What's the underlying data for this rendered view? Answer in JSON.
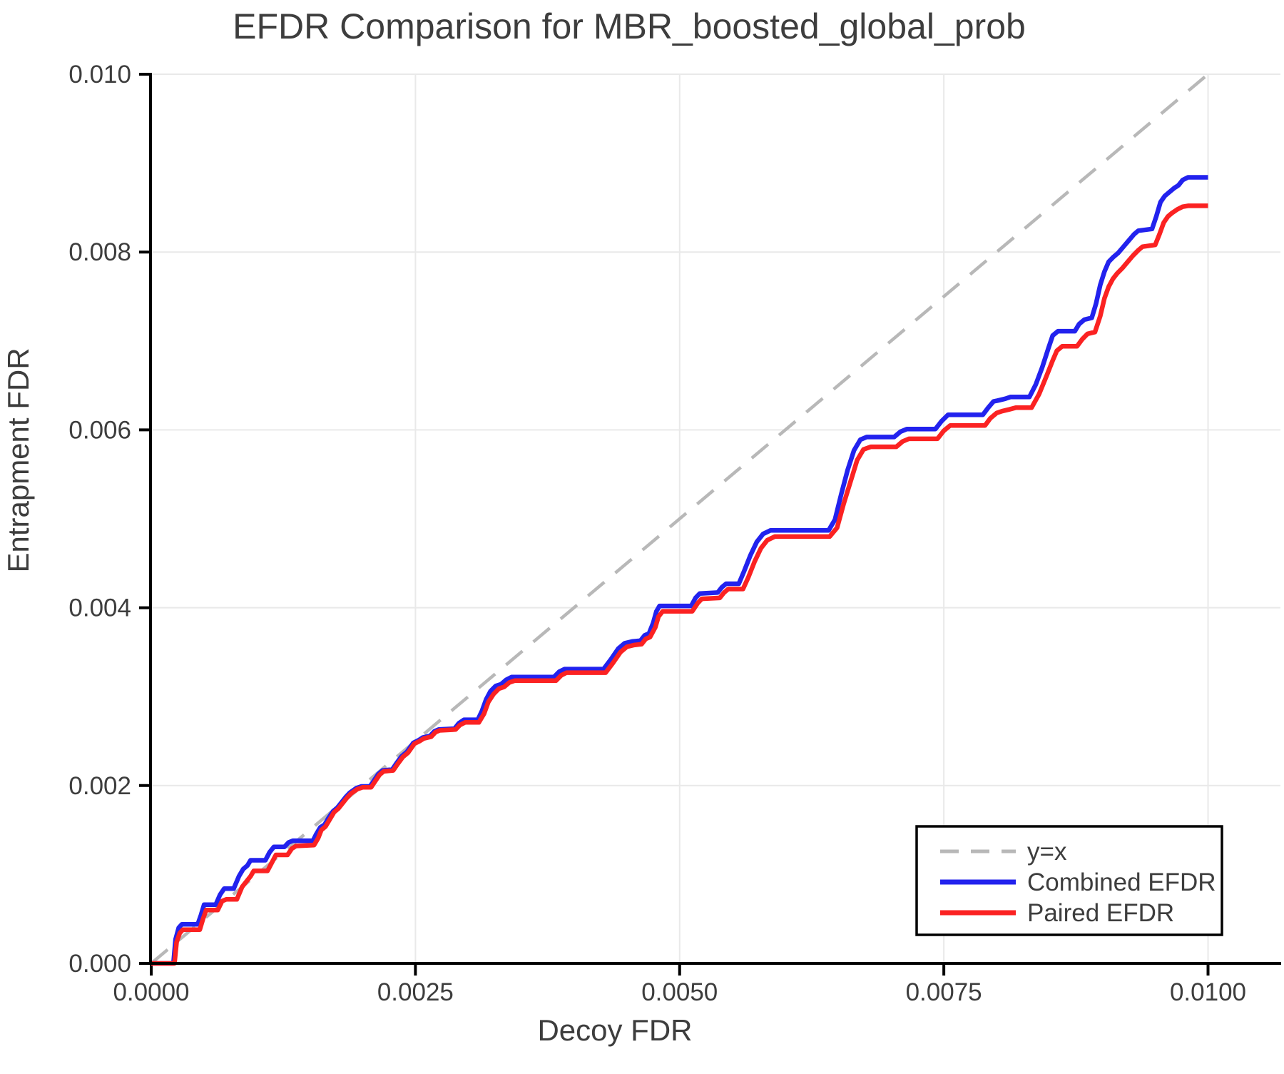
{
  "title": "EFDR Comparison for MBR_boosted_global_prob",
  "colors": {
    "text": "#3d3d3d",
    "axis": "#000000",
    "grid": "#e9e9e9",
    "background": "#ffffff",
    "identity": "#b8b8b8",
    "combined": "#2222ee",
    "paired": "#fb2222"
  },
  "chart_data": {
    "type": "line",
    "title": "EFDR Comparison for MBR_boosted_global_prob",
    "xlabel": "Decoy FDR",
    "ylabel": "Entrapment FDR",
    "xlim": [
      0,
      0.0107
    ],
    "ylim": [
      0,
      0.01
    ],
    "grid": true,
    "legend_position": "bottom-right",
    "x_ticks": [
      {
        "value": 0.0,
        "label": "0.0000"
      },
      {
        "value": 0.0025,
        "label": "0.0025"
      },
      {
        "value": 0.005,
        "label": "0.0050"
      },
      {
        "value": 0.0075,
        "label": "0.0075"
      },
      {
        "value": 0.01,
        "label": "0.0100"
      }
    ],
    "y_ticks": [
      {
        "value": 0.0,
        "label": "0.000"
      },
      {
        "value": 0.002,
        "label": "0.002"
      },
      {
        "value": 0.004,
        "label": "0.004"
      },
      {
        "value": 0.006,
        "label": "0.006"
      },
      {
        "value": 0.008,
        "label": "0.008"
      },
      {
        "value": 0.01,
        "label": "0.010"
      }
    ],
    "identity_line": {
      "label": "y=x",
      "style": "dashed",
      "from": [
        0,
        0
      ],
      "to": [
        0.01,
        0.01
      ]
    },
    "series": [
      {
        "name": "Combined EFDR",
        "color": "#2222ee",
        "points": [
          [
            0,
            0
          ],
          [
            0.00021,
            0
          ],
          [
            0.00023,
            0.00027
          ],
          [
            0.00026,
            0.0004
          ],
          [
            0.00029,
            0.00044
          ],
          [
            0.00044,
            0.00044
          ],
          [
            0.00047,
            0.00054
          ],
          [
            0.0005,
            0.00066
          ],
          [
            0.00061,
            0.00066
          ],
          [
            0.00065,
            0.00077
          ],
          [
            0.00069,
            0.00084
          ],
          [
            0.00078,
            0.00084
          ],
          [
            0.00083,
            0.00098
          ],
          [
            0.00087,
            0.00106
          ],
          [
            0.00091,
            0.0011
          ],
          [
            0.00094,
            0.00116
          ],
          [
            0.00108,
            0.00116
          ],
          [
            0.00112,
            0.00125
          ],
          [
            0.00116,
            0.00131
          ],
          [
            0.00126,
            0.00131
          ],
          [
            0.0013,
            0.00136
          ],
          [
            0.00134,
            0.00138
          ],
          [
            0.00153,
            0.00138
          ],
          [
            0.00156,
            0.00145
          ],
          [
            0.0016,
            0.00153
          ],
          [
            0.00164,
            0.00156
          ],
          [
            0.00168,
            0.00164
          ],
          [
            0.00172,
            0.00171
          ],
          [
            0.00176,
            0.00175
          ],
          [
            0.0018,
            0.00181
          ],
          [
            0.00184,
            0.00187
          ],
          [
            0.00188,
            0.00192
          ],
          [
            0.00194,
            0.00197
          ],
          [
            0.00199,
            0.00199
          ],
          [
            0.00207,
            0.00199
          ],
          [
            0.00211,
            0.00206
          ],
          [
            0.00215,
            0.00213
          ],
          [
            0.00219,
            0.00217
          ],
          [
            0.00228,
            0.00218
          ],
          [
            0.00232,
            0.00225
          ],
          [
            0.00237,
            0.00233
          ],
          [
            0.00242,
            0.00238
          ],
          [
            0.00248,
            0.00248
          ],
          [
            0.00253,
            0.00251
          ],
          [
            0.00257,
            0.00254
          ],
          [
            0.00264,
            0.00256
          ],
          [
            0.00268,
            0.00261
          ],
          [
            0.00272,
            0.00263
          ],
          [
            0.00287,
            0.00264
          ],
          [
            0.00291,
            0.0027
          ],
          [
            0.00296,
            0.00274
          ],
          [
            0.00309,
            0.00274
          ],
          [
            0.00313,
            0.00284
          ],
          [
            0.00317,
            0.00297
          ],
          [
            0.00321,
            0.00306
          ],
          [
            0.00326,
            0.00312
          ],
          [
            0.00331,
            0.00314
          ],
          [
            0.00336,
            0.00319
          ],
          [
            0.00341,
            0.00322
          ],
          [
            0.00381,
            0.00322
          ],
          [
            0.00386,
            0.00328
          ],
          [
            0.00391,
            0.00331
          ],
          [
            0.00428,
            0.00331
          ],
          [
            0.00435,
            0.00342
          ],
          [
            0.00442,
            0.00354
          ],
          [
            0.00448,
            0.0036
          ],
          [
            0.00455,
            0.00362
          ],
          [
            0.00463,
            0.00363
          ],
          [
            0.00467,
            0.00369
          ],
          [
            0.00471,
            0.00371
          ],
          [
            0.00475,
            0.00383
          ],
          [
            0.00478,
            0.00396
          ],
          [
            0.00481,
            0.00402
          ],
          [
            0.00511,
            0.00402
          ],
          [
            0.00515,
            0.00411
          ],
          [
            0.00519,
            0.00416
          ],
          [
            0.00536,
            0.00417
          ],
          [
            0.0054,
            0.00423
          ],
          [
            0.00544,
            0.00427
          ],
          [
            0.00556,
            0.00427
          ],
          [
            0.00561,
            0.00441
          ],
          [
            0.00567,
            0.00459
          ],
          [
            0.00573,
            0.00474
          ],
          [
            0.00579,
            0.00483
          ],
          [
            0.00586,
            0.00487
          ],
          [
            0.00641,
            0.00487
          ],
          [
            0.00647,
            0.00499
          ],
          [
            0.00653,
            0.00528
          ],
          [
            0.00659,
            0.00555
          ],
          [
            0.00665,
            0.00577
          ],
          [
            0.00671,
            0.00589
          ],
          [
            0.00677,
            0.00592
          ],
          [
            0.00703,
            0.00592
          ],
          [
            0.00709,
            0.00598
          ],
          [
            0.00715,
            0.00601
          ],
          [
            0.00742,
            0.00601
          ],
          [
            0.00748,
            0.0061
          ],
          [
            0.00754,
            0.00617
          ],
          [
            0.00787,
            0.00617
          ],
          [
            0.00792,
            0.00625
          ],
          [
            0.00797,
            0.00632
          ],
          [
            0.00801,
            0.00633
          ],
          [
            0.00808,
            0.00635
          ],
          [
            0.00813,
            0.00637
          ],
          [
            0.00831,
            0.00637
          ],
          [
            0.00837,
            0.00651
          ],
          [
            0.00843,
            0.0067
          ],
          [
            0.00849,
            0.00692
          ],
          [
            0.00853,
            0.00706
          ],
          [
            0.00858,
            0.00711
          ],
          [
            0.00874,
            0.00711
          ],
          [
            0.00878,
            0.00719
          ],
          [
            0.00883,
            0.00724
          ],
          [
            0.0089,
            0.00726
          ],
          [
            0.00894,
            0.00742
          ],
          [
            0.00898,
            0.00763
          ],
          [
            0.00902,
            0.00778
          ],
          [
            0.00906,
            0.00789
          ],
          [
            0.0091,
            0.00794
          ],
          [
            0.00915,
            0.00799
          ],
          [
            0.0092,
            0.00806
          ],
          [
            0.00925,
            0.00813
          ],
          [
            0.0093,
            0.0082
          ],
          [
            0.00934,
            0.00824
          ],
          [
            0.00947,
            0.00826
          ],
          [
            0.00951,
            0.0084
          ],
          [
            0.00955,
            0.00856
          ],
          [
            0.00959,
            0.00863
          ],
          [
            0.00963,
            0.00867
          ],
          [
            0.00968,
            0.00872
          ],
          [
            0.00972,
            0.00875
          ],
          [
            0.00976,
            0.00881
          ],
          [
            0.00981,
            0.00884
          ],
          [
            0.01,
            0.00884
          ]
        ]
      },
      {
        "name": "Paired EFDR",
        "color": "#fb2222",
        "points": [
          [
            0,
            0
          ],
          [
            0.00022,
            0
          ],
          [
            0.00024,
            0.00024
          ],
          [
            0.00027,
            0.00034
          ],
          [
            0.0003,
            0.00038
          ],
          [
            0.00046,
            0.00038
          ],
          [
            0.00049,
            0.0005
          ],
          [
            0.00052,
            0.0006
          ],
          [
            0.00063,
            0.0006
          ],
          [
            0.00067,
            0.0007
          ],
          [
            0.00071,
            0.00072
          ],
          [
            0.00081,
            0.00072
          ],
          [
            0.00086,
            0.00086
          ],
          [
            0.0009,
            0.00092
          ],
          [
            0.00094,
            0.00098
          ],
          [
            0.00097,
            0.00104
          ],
          [
            0.0011,
            0.00104
          ],
          [
            0.00114,
            0.00113
          ],
          [
            0.00118,
            0.00122
          ],
          [
            0.00129,
            0.00122
          ],
          [
            0.00133,
            0.00129
          ],
          [
            0.00137,
            0.00132
          ],
          [
            0.00154,
            0.00133
          ],
          [
            0.00158,
            0.00141
          ],
          [
            0.00161,
            0.0015
          ],
          [
            0.00165,
            0.00154
          ],
          [
            0.00169,
            0.00162
          ],
          [
            0.00173,
            0.0017
          ],
          [
            0.00177,
            0.00174
          ],
          [
            0.00181,
            0.0018
          ],
          [
            0.00185,
            0.00186
          ],
          [
            0.00189,
            0.00191
          ],
          [
            0.00195,
            0.00196
          ],
          [
            0.002,
            0.00198
          ],
          [
            0.00208,
            0.00198
          ],
          [
            0.00212,
            0.00205
          ],
          [
            0.00216,
            0.00212
          ],
          [
            0.0022,
            0.00216
          ],
          [
            0.00229,
            0.00217
          ],
          [
            0.00233,
            0.00224
          ],
          [
            0.00238,
            0.00232
          ],
          [
            0.00243,
            0.00237
          ],
          [
            0.00249,
            0.00247
          ],
          [
            0.00254,
            0.0025
          ],
          [
            0.00258,
            0.00253
          ],
          [
            0.00265,
            0.00255
          ],
          [
            0.00269,
            0.0026
          ],
          [
            0.00273,
            0.00262
          ],
          [
            0.00288,
            0.00263
          ],
          [
            0.00292,
            0.00268
          ],
          [
            0.00297,
            0.00271
          ],
          [
            0.0031,
            0.00271
          ],
          [
            0.00315,
            0.00281
          ],
          [
            0.00319,
            0.00294
          ],
          [
            0.00324,
            0.00303
          ],
          [
            0.00329,
            0.00309
          ],
          [
            0.00334,
            0.00311
          ],
          [
            0.00339,
            0.00316
          ],
          [
            0.00344,
            0.00318
          ],
          [
            0.00383,
            0.00318
          ],
          [
            0.00388,
            0.00324
          ],
          [
            0.00393,
            0.00327
          ],
          [
            0.0043,
            0.00327
          ],
          [
            0.00437,
            0.00338
          ],
          [
            0.00444,
            0.0035
          ],
          [
            0.0045,
            0.00356
          ],
          [
            0.00457,
            0.00358
          ],
          [
            0.00464,
            0.00359
          ],
          [
            0.00468,
            0.00365
          ],
          [
            0.00472,
            0.00367
          ],
          [
            0.00477,
            0.00378
          ],
          [
            0.0048,
            0.0039
          ],
          [
            0.00484,
            0.00396
          ],
          [
            0.00512,
            0.00396
          ],
          [
            0.00517,
            0.00405
          ],
          [
            0.00521,
            0.0041
          ],
          [
            0.00538,
            0.00411
          ],
          [
            0.00542,
            0.00417
          ],
          [
            0.00546,
            0.00421
          ],
          [
            0.0056,
            0.00421
          ],
          [
            0.00565,
            0.00434
          ],
          [
            0.00571,
            0.00452
          ],
          [
            0.00577,
            0.00467
          ],
          [
            0.00583,
            0.00476
          ],
          [
            0.0059,
            0.0048
          ],
          [
            0.00642,
            0.0048
          ],
          [
            0.00649,
            0.0049
          ],
          [
            0.00655,
            0.00516
          ],
          [
            0.00662,
            0.00543
          ],
          [
            0.00668,
            0.00566
          ],
          [
            0.00674,
            0.00578
          ],
          [
            0.00681,
            0.00581
          ],
          [
            0.00705,
            0.00581
          ],
          [
            0.00711,
            0.00587
          ],
          [
            0.00717,
            0.0059
          ],
          [
            0.00744,
            0.0059
          ],
          [
            0.0075,
            0.00599
          ],
          [
            0.00756,
            0.00605
          ],
          [
            0.00789,
            0.00605
          ],
          [
            0.00794,
            0.00613
          ],
          [
            0.008,
            0.00619
          ],
          [
            0.00805,
            0.00621
          ],
          [
            0.00812,
            0.00623
          ],
          [
            0.00818,
            0.00625
          ],
          [
            0.00833,
            0.00625
          ],
          [
            0.0084,
            0.0064
          ],
          [
            0.00847,
            0.0066
          ],
          [
            0.00853,
            0.00678
          ],
          [
            0.00857,
            0.00689
          ],
          [
            0.00862,
            0.00694
          ],
          [
            0.00876,
            0.00694
          ],
          [
            0.00881,
            0.00702
          ],
          [
            0.00886,
            0.00708
          ],
          [
            0.00893,
            0.0071
          ],
          [
            0.00898,
            0.00728
          ],
          [
            0.00902,
            0.00748
          ],
          [
            0.00906,
            0.00761
          ],
          [
            0.0091,
            0.0077
          ],
          [
            0.00914,
            0.00776
          ],
          [
            0.00919,
            0.00782
          ],
          [
            0.00924,
            0.00789
          ],
          [
            0.00929,
            0.00796
          ],
          [
            0.00934,
            0.00802
          ],
          [
            0.00938,
            0.00806
          ],
          [
            0.0095,
            0.00808
          ],
          [
            0.00954,
            0.0082
          ],
          [
            0.00958,
            0.00833
          ],
          [
            0.00962,
            0.0084
          ],
          [
            0.00966,
            0.00844
          ],
          [
            0.00971,
            0.00848
          ],
          [
            0.00976,
            0.00851
          ],
          [
            0.00981,
            0.00852
          ],
          [
            0.01,
            0.00852
          ]
        ]
      }
    ]
  },
  "legend": {
    "identity_label": "y=x",
    "combined_label": "Combined EFDR",
    "paired_label": "Paired EFDR"
  }
}
